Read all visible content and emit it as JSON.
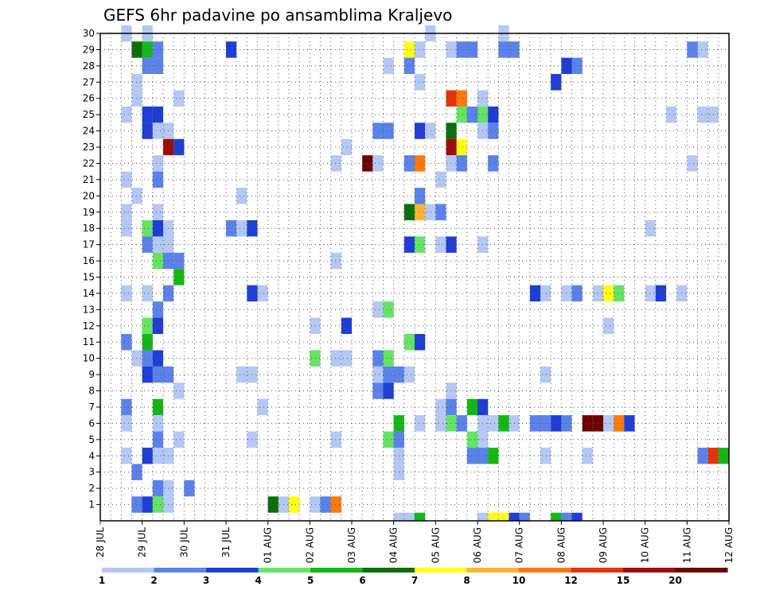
{
  "chart_data": {
    "type": "heatmap",
    "title": "GEFS 6hr padavine po ansamblima Kraljevo",
    "xlabel": "",
    "ylabel": "",
    "x_tick_labels": [
      "28 JUL",
      "29 JUL",
      "30 JUL",
      "31 JUL",
      "01 AUG",
      "02 AUG",
      "03 AUG",
      "04 AUG",
      "05 AUG",
      "06 AUG",
      "07 AUG",
      "08 AUG",
      "09 AUG",
      "10 AUG",
      "11 AUG",
      "12 AUG"
    ],
    "y_tick_labels": [
      "1",
      "2",
      "3",
      "4",
      "5",
      "6",
      "7",
      "8",
      "9",
      "10",
      "11",
      "12",
      "13",
      "14",
      "15",
      "16",
      "17",
      "18",
      "19",
      "20",
      "21",
      "22",
      "23",
      "24",
      "25",
      "26",
      "27",
      "28",
      "29",
      "30"
    ],
    "x_range_steps": [
      0,
      60
    ],
    "steps_per_day": 4,
    "y_range": [
      0,
      30
    ],
    "grid": true,
    "colorbar": {
      "labels": [
        "1",
        "2",
        "3",
        "4",
        "5",
        "6",
        "7",
        "8",
        "10",
        "12",
        "15",
        "20"
      ],
      "colors": [
        "#b4c8f4",
        "#5a82ea",
        "#1e3ed6",
        "#64e464",
        "#14b814",
        "#0a6e0a",
        "#ffff14",
        "#ffb432",
        "#ff780a",
        "#e6320a",
        "#a00a0a",
        "#6e0000"
      ]
    },
    "cells": [
      [
        3,
        30,
        0
      ],
      [
        5,
        30,
        0
      ],
      [
        32,
        30,
        0
      ],
      [
        39,
        30,
        0
      ],
      [
        4,
        29,
        5
      ],
      [
        5,
        29,
        4
      ],
      [
        6,
        29,
        1
      ],
      [
        13,
        29,
        2
      ],
      [
        30,
        29,
        6
      ],
      [
        31,
        29,
        0
      ],
      [
        34,
        29,
        0
      ],
      [
        35,
        29,
        1
      ],
      [
        36,
        29,
        1
      ],
      [
        39,
        29,
        1
      ],
      [
        40,
        29,
        1
      ],
      [
        57,
        29,
        1
      ],
      [
        58,
        29,
        0
      ],
      [
        5,
        28,
        1
      ],
      [
        6,
        28,
        1
      ],
      [
        28,
        28,
        0
      ],
      [
        30,
        28,
        1
      ],
      [
        45,
        28,
        2
      ],
      [
        46,
        28,
        1
      ],
      [
        4,
        27,
        0
      ],
      [
        31,
        27,
        0
      ],
      [
        44,
        27,
        2
      ],
      [
        4,
        26,
        0
      ],
      [
        8,
        26,
        0
      ],
      [
        34,
        26,
        9
      ],
      [
        35,
        26,
        8
      ],
      [
        37,
        26,
        0
      ],
      [
        3,
        25,
        0
      ],
      [
        5,
        25,
        2
      ],
      [
        6,
        25,
        2
      ],
      [
        35,
        25,
        3
      ],
      [
        36,
        25,
        1
      ],
      [
        37,
        25,
        3
      ],
      [
        38,
        25,
        2
      ],
      [
        55,
        25,
        0
      ],
      [
        58,
        25,
        0
      ],
      [
        59,
        25,
        0
      ],
      [
        5,
        24,
        2
      ],
      [
        6,
        24,
        0
      ],
      [
        7,
        24,
        0
      ],
      [
        27,
        24,
        1
      ],
      [
        28,
        24,
        1
      ],
      [
        31,
        24,
        2
      ],
      [
        32,
        24,
        0
      ],
      [
        34,
        24,
        5
      ],
      [
        37,
        24,
        0
      ],
      [
        38,
        24,
        1
      ],
      [
        7,
        23,
        10
      ],
      [
        8,
        23,
        2
      ],
      [
        24,
        23,
        0
      ],
      [
        34,
        23,
        10
      ],
      [
        35,
        23,
        6
      ],
      [
        6,
        22,
        0
      ],
      [
        23,
        22,
        0
      ],
      [
        26,
        22,
        11
      ],
      [
        27,
        22,
        0
      ],
      [
        30,
        22,
        1
      ],
      [
        31,
        22,
        8
      ],
      [
        34,
        22,
        0
      ],
      [
        35,
        22,
        1
      ],
      [
        38,
        22,
        1
      ],
      [
        57,
        22,
        0
      ],
      [
        3,
        21,
        0
      ],
      [
        6,
        21,
        1
      ],
      [
        33,
        21,
        0
      ],
      [
        4,
        20,
        0
      ],
      [
        14,
        20,
        0
      ],
      [
        31,
        20,
        1
      ],
      [
        3,
        19,
        0
      ],
      [
        6,
        19,
        0
      ],
      [
        30,
        19,
        5
      ],
      [
        31,
        19,
        7
      ],
      [
        32,
        19,
        0
      ],
      [
        33,
        19,
        1
      ],
      [
        3,
        18,
        0
      ],
      [
        5,
        18,
        3
      ],
      [
        6,
        18,
        2
      ],
      [
        7,
        18,
        0
      ],
      [
        13,
        18,
        1
      ],
      [
        14,
        18,
        0
      ],
      [
        15,
        18,
        2
      ],
      [
        53,
        18,
        0
      ],
      [
        5,
        17,
        1
      ],
      [
        6,
        17,
        0
      ],
      [
        7,
        17,
        0
      ],
      [
        30,
        17,
        2
      ],
      [
        31,
        17,
        3
      ],
      [
        33,
        17,
        0
      ],
      [
        34,
        17,
        2
      ],
      [
        37,
        17,
        0
      ],
      [
        6,
        16,
        3
      ],
      [
        7,
        16,
        1
      ],
      [
        8,
        16,
        1
      ],
      [
        23,
        16,
        0
      ],
      [
        8,
        15,
        4
      ],
      [
        3,
        14,
        0
      ],
      [
        5,
        14,
        0
      ],
      [
        7,
        14,
        1
      ],
      [
        15,
        14,
        2
      ],
      [
        16,
        14,
        0
      ],
      [
        42,
        14,
        2
      ],
      [
        43,
        14,
        0
      ],
      [
        45,
        14,
        0
      ],
      [
        46,
        14,
        1
      ],
      [
        48,
        14,
        0
      ],
      [
        49,
        14,
        6
      ],
      [
        50,
        14,
        3
      ],
      [
        53,
        14,
        0
      ],
      [
        54,
        14,
        2
      ],
      [
        56,
        14,
        0
      ],
      [
        6,
        13,
        1
      ],
      [
        27,
        13,
        0
      ],
      [
        28,
        13,
        3
      ],
      [
        5,
        12,
        3
      ],
      [
        6,
        12,
        2
      ],
      [
        21,
        12,
        0
      ],
      [
        24,
        12,
        2
      ],
      [
        49,
        12,
        0
      ],
      [
        3,
        11,
        1
      ],
      [
        5,
        11,
        4
      ],
      [
        30,
        11,
        3
      ],
      [
        31,
        11,
        2
      ],
      [
        4,
        10,
        0
      ],
      [
        5,
        10,
        1
      ],
      [
        6,
        10,
        2
      ],
      [
        21,
        10,
        3
      ],
      [
        23,
        10,
        0
      ],
      [
        24,
        10,
        0
      ],
      [
        27,
        10,
        1
      ],
      [
        28,
        10,
        3
      ],
      [
        5,
        9,
        2
      ],
      [
        6,
        9,
        1
      ],
      [
        7,
        9,
        1
      ],
      [
        14,
        9,
        0
      ],
      [
        15,
        9,
        0
      ],
      [
        27,
        9,
        0
      ],
      [
        28,
        9,
        1
      ],
      [
        29,
        9,
        1
      ],
      [
        30,
        9,
        0
      ],
      [
        43,
        9,
        0
      ],
      [
        8,
        8,
        0
      ],
      [
        27,
        8,
        1
      ],
      [
        28,
        8,
        2
      ],
      [
        34,
        8,
        0
      ],
      [
        3,
        7,
        1
      ],
      [
        6,
        7,
        4
      ],
      [
        16,
        7,
        0
      ],
      [
        33,
        7,
        0
      ],
      [
        34,
        7,
        1
      ],
      [
        36,
        7,
        4
      ],
      [
        37,
        7,
        2
      ],
      [
        3,
        6,
        0
      ],
      [
        6,
        6,
        0
      ],
      [
        29,
        6,
        4
      ],
      [
        31,
        6,
        0
      ],
      [
        33,
        6,
        0
      ],
      [
        34,
        6,
        3
      ],
      [
        35,
        6,
        1
      ],
      [
        37,
        6,
        0
      ],
      [
        38,
        6,
        0
      ],
      [
        39,
        6,
        4
      ],
      [
        40,
        6,
        0
      ],
      [
        42,
        6,
        1
      ],
      [
        43,
        6,
        1
      ],
      [
        44,
        6,
        2
      ],
      [
        45,
        6,
        1
      ],
      [
        47,
        6,
        11
      ],
      [
        48,
        6,
        11
      ],
      [
        49,
        6,
        0
      ],
      [
        50,
        6,
        8
      ],
      [
        51,
        6,
        2
      ],
      [
        6,
        5,
        1
      ],
      [
        8,
        5,
        0
      ],
      [
        15,
        5,
        0
      ],
      [
        23,
        5,
        0
      ],
      [
        28,
        5,
        3
      ],
      [
        29,
        5,
        1
      ],
      [
        36,
        5,
        3
      ],
      [
        37,
        5,
        0
      ],
      [
        3,
        4,
        0
      ],
      [
        5,
        4,
        2
      ],
      [
        6,
        4,
        0
      ],
      [
        7,
        4,
        0
      ],
      [
        29,
        4,
        0
      ],
      [
        36,
        4,
        1
      ],
      [
        37,
        4,
        1
      ],
      [
        38,
        4,
        4
      ],
      [
        43,
        4,
        0
      ],
      [
        47,
        4,
        0
      ],
      [
        58,
        4,
        1
      ],
      [
        59,
        4,
        9
      ],
      [
        60,
        4,
        4
      ],
      [
        4,
        3,
        1
      ],
      [
        29,
        3,
        0
      ],
      [
        6,
        2,
        1
      ],
      [
        7,
        2,
        0
      ],
      [
        9,
        2,
        1
      ],
      [
        4,
        1,
        1
      ],
      [
        5,
        1,
        2
      ],
      [
        6,
        1,
        3
      ],
      [
        7,
        1,
        0
      ],
      [
        17,
        1,
        5
      ],
      [
        18,
        1,
        0
      ],
      [
        19,
        1,
        6
      ],
      [
        21,
        1,
        0
      ],
      [
        22,
        1,
        1
      ],
      [
        23,
        1,
        8
      ],
      [
        29,
        0,
        0
      ],
      [
        30,
        0,
        0
      ],
      [
        31,
        0,
        4
      ],
      [
        37,
        0,
        0
      ],
      [
        38,
        0,
        6
      ],
      [
        39,
        0,
        6
      ],
      [
        40,
        0,
        2
      ],
      [
        41,
        0,
        1
      ],
      [
        44,
        0,
        4
      ],
      [
        45,
        0,
        1
      ],
      [
        46,
        0,
        2
      ]
    ]
  }
}
